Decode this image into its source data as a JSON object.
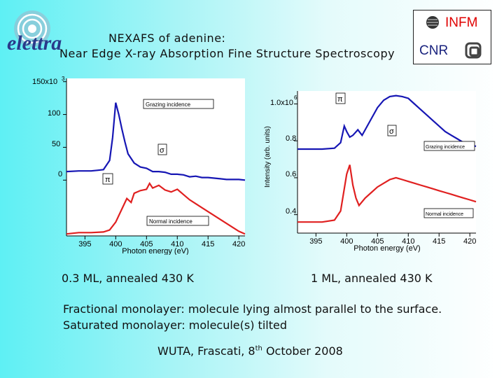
{
  "header": {
    "title_line1": "NEXAFS of adenine:",
    "title_line2": "Near Edge X-ray Absorption Fine Structure Spectroscopy",
    "logo_left": "elettra",
    "logo_right_top": "INFM",
    "logo_right_bottom": "CNR"
  },
  "colors": {
    "grazing": "#1616b4",
    "normal": "#e02020",
    "accent_red": "#e00000",
    "cnr_blue": "#1a237e"
  },
  "chart_data": [
    {
      "type": "line",
      "xlabel": "Photon energy (eV)",
      "ylabel": "",
      "y_tick_labels": [
        "150x10",
        "100",
        "50",
        "0"
      ],
      "y_exponent": "3",
      "xlim": [
        392,
        421
      ],
      "ylim": [
        -85,
        155
      ],
      "xticks": [
        395,
        400,
        405,
        410,
        415,
        420
      ],
      "yticks": [
        150,
        100,
        50,
        0
      ],
      "annotations": [
        "Grazing incidence",
        "σ",
        "π",
        "Normal incidence"
      ],
      "series": [
        {
          "name": "Grazing incidence",
          "x": [
            392,
            394,
            396,
            397,
            398,
            399,
            399.5,
            400,
            400.5,
            401,
            401.5,
            402,
            403,
            404,
            405,
            406,
            407,
            408,
            409,
            410,
            411,
            412,
            413,
            414,
            415,
            416,
            417,
            418,
            419,
            420,
            421
          ],
          "y": [
            13,
            14,
            14,
            15,
            16,
            30,
            65,
            118,
            100,
            78,
            58,
            40,
            26,
            20,
            18,
            13,
            13,
            12,
            9,
            9,
            8,
            5,
            6,
            4,
            4,
            3,
            2,
            1,
            1,
            1,
            0
          ]
        },
        {
          "name": "Normal incidence",
          "x": [
            392,
            394,
            396,
            398,
            399,
            400,
            401,
            401.8,
            402.5,
            403,
            404,
            405,
            405.5,
            406,
            407,
            408,
            409,
            410,
            411,
            412,
            413,
            414,
            415,
            416,
            417,
            418,
            419,
            420,
            421
          ],
          "y": [
            -82,
            -80,
            -80,
            -79,
            -76,
            -64,
            -44,
            -28,
            -34,
            -20,
            -16,
            -14,
            -5,
            -12,
            -8,
            -15,
            -18,
            -14,
            -22,
            -30,
            -36,
            -42,
            -48,
            -54,
            -60,
            -66,
            -72,
            -78,
            -82
          ]
        }
      ]
    },
    {
      "type": "line",
      "xlabel": "Photon energy (eV)",
      "ylabel": "Intensity (arb. units)",
      "y_tick_labels": [
        "1.0x10",
        "0.8",
        "0.6",
        "0.4"
      ],
      "y_exponent": "6",
      "xlim": [
        392,
        421
      ],
      "ylim": [
        0.3,
        1.07
      ],
      "xticks": [
        395,
        400,
        405,
        410,
        415,
        420
      ],
      "yticks": [
        1.0,
        0.8,
        0.6,
        0.4
      ],
      "annotations": [
        "π",
        "σ",
        "Grazing incidence",
        "Normal incidence"
      ],
      "series": [
        {
          "name": "Grazing incidence",
          "x": [
            392,
            394,
            396,
            398,
            399,
            399.6,
            400,
            400.5,
            401,
            401.8,
            402.5,
            403,
            404,
            405,
            406,
            407,
            408,
            409,
            410,
            411,
            412,
            413,
            414,
            415,
            416,
            417,
            418,
            419,
            420,
            421
          ],
          "y": [
            0.755,
            0.755,
            0.755,
            0.76,
            0.79,
            0.88,
            0.85,
            0.82,
            0.83,
            0.86,
            0.83,
            0.86,
            0.92,
            0.98,
            1.02,
            1.04,
            1.045,
            1.04,
            1.03,
            1.0,
            0.97,
            0.94,
            0.91,
            0.88,
            0.85,
            0.83,
            0.81,
            0.79,
            0.78,
            0.77
          ]
        },
        {
          "name": "Normal incidence",
          "x": [
            392,
            394,
            396,
            398,
            399,
            400,
            400.5,
            401,
            401.5,
            402,
            403,
            404,
            405,
            406,
            407,
            408,
            409,
            410,
            411,
            412,
            413,
            414,
            415,
            416,
            417,
            418,
            419,
            420,
            421
          ],
          "y": [
            0.36,
            0.36,
            0.36,
            0.37,
            0.42,
            0.62,
            0.67,
            0.56,
            0.49,
            0.45,
            0.49,
            0.52,
            0.55,
            0.57,
            0.59,
            0.6,
            0.59,
            0.58,
            0.57,
            0.56,
            0.55,
            0.54,
            0.53,
            0.52,
            0.51,
            0.5,
            0.49,
            0.48,
            0.47
          ]
        }
      ]
    }
  ],
  "captions": {
    "left": "0.3 ML, annealed 430 K",
    "right": "1 ML, annealed 430 K"
  },
  "body": {
    "line1": "Fractional monolayer: molecule lying almost parallel to the surface.",
    "line2": "Saturated monolayer: molecule(s) tilted"
  },
  "footer": {
    "text_before": "WUTA, Frascati, 8",
    "superscript": "th",
    "text_after": " October 2008"
  }
}
